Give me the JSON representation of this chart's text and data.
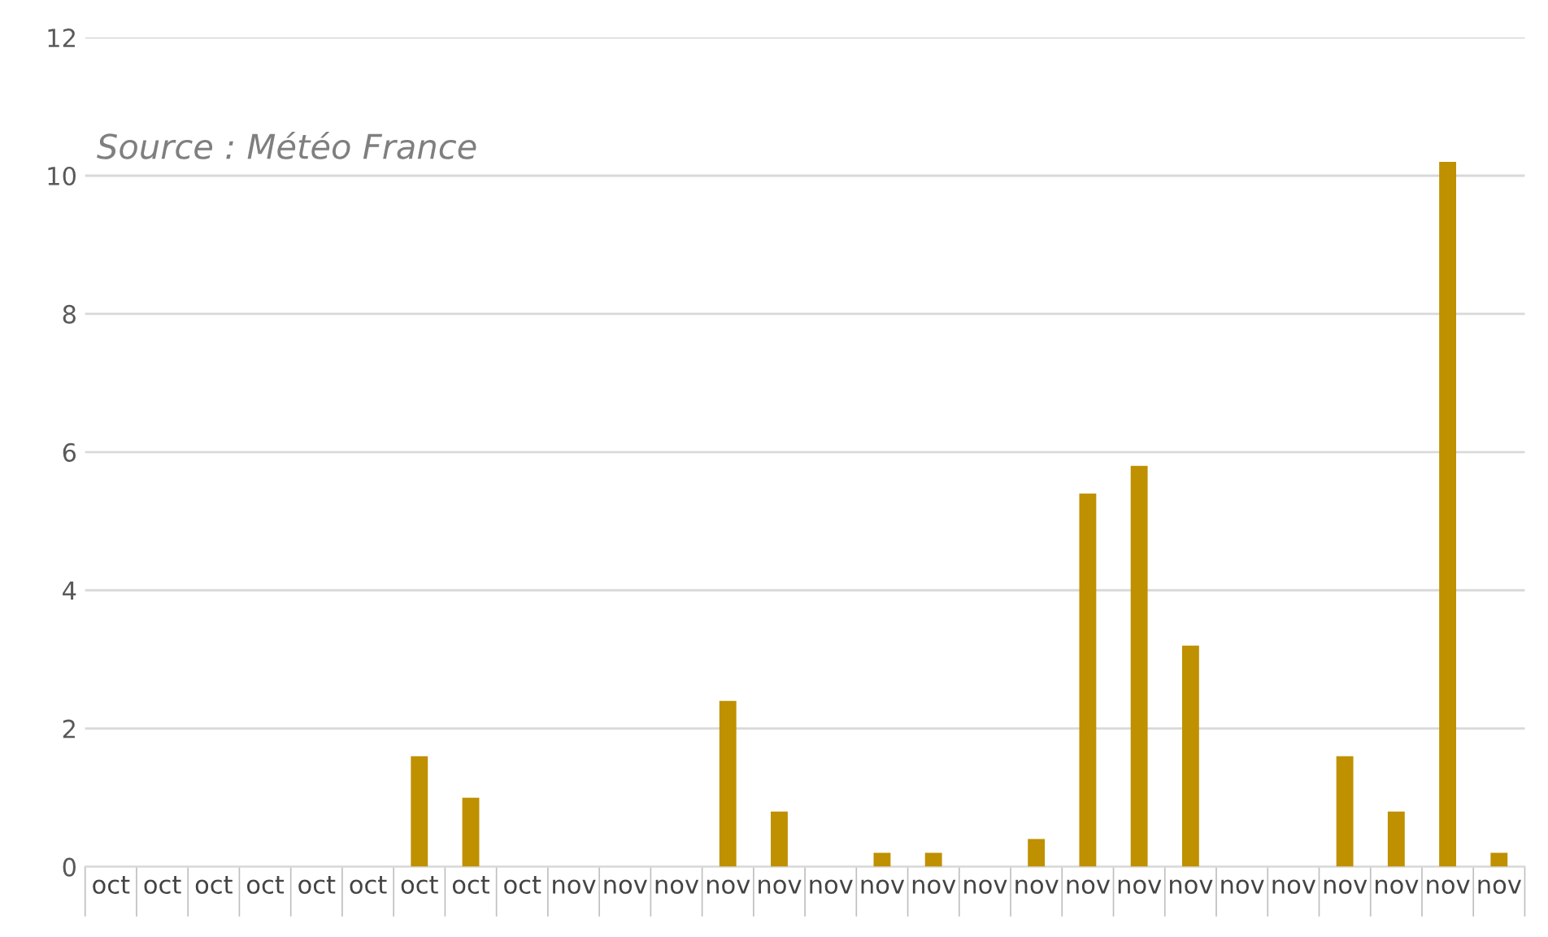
{
  "chart_data": {
    "type": "bar",
    "categories": [
      "oct",
      "oct",
      "oct",
      "oct",
      "oct",
      "oct",
      "oct",
      "oct",
      "oct",
      "nov",
      "nov",
      "nov",
      "nov",
      "nov",
      "nov",
      "nov",
      "nov",
      "nov",
      "nov",
      "nov",
      "nov",
      "nov",
      "nov",
      "nov",
      "nov",
      "nov",
      "nov",
      "nov"
    ],
    "values": [
      0,
      0,
      0,
      0,
      0,
      0,
      1.6,
      1.0,
      0,
      0,
      0,
      0,
      2.4,
      0.8,
      0,
      0.2,
      0.2,
      0,
      0.4,
      5.4,
      5.8,
      3.2,
      0,
      0,
      1.6,
      0.8,
      10.2,
      0.2
    ],
    "color": "#bf9000",
    "ylim": [
      0,
      12
    ],
    "yticks": [
      0,
      2,
      4,
      6,
      8,
      10,
      12
    ],
    "grid": "y",
    "annotations": [
      "Source : Météo France"
    ]
  }
}
